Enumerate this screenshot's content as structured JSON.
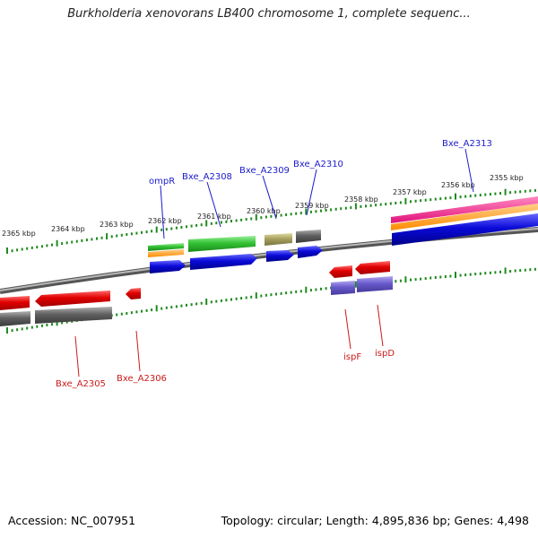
{
  "header": {
    "title": "Burkholderia xenovorans LB400 chromosome 1, complete sequenc..."
  },
  "footer": {
    "accession": "Accession: NC_007951",
    "summary": "Topology: circular; Length: 4,895,836 bp; Genes: 4,498"
  },
  "ruler_labels": [
    "2365 kbp",
    "2364 kbp",
    "2363 kbp",
    "2362 kbp",
    "2361 kbp",
    "2360 kbp",
    "2359 kbp",
    "2358 kbp",
    "2357 kbp",
    "2356 kbp",
    "2355 kbp"
  ],
  "genes_top": [
    "ompR",
    "Bxe_A2308",
    "Bxe_A2309",
    "Bxe_A2310",
    "Bxe_A2313"
  ],
  "genes_bottom": [
    "Bxe_A2305",
    "Bxe_A2306",
    "ispF",
    "ispD"
  ],
  "colors": {
    "tick": "#1f8a1f",
    "label_top": "#1a1acc",
    "label_bottom": "#cc1a1a",
    "backbone": "#7a7a7a",
    "cds_red": "#e00000",
    "cds_blue": "#0a0ad8",
    "cds_green": "#33c233",
    "cds_gray": "#606060",
    "cds_olive": "#a8a060",
    "cds_purple": "#6a5acd",
    "cds_orange": "#ff9a1a",
    "cds_magenta": "#ff2a8a"
  }
}
